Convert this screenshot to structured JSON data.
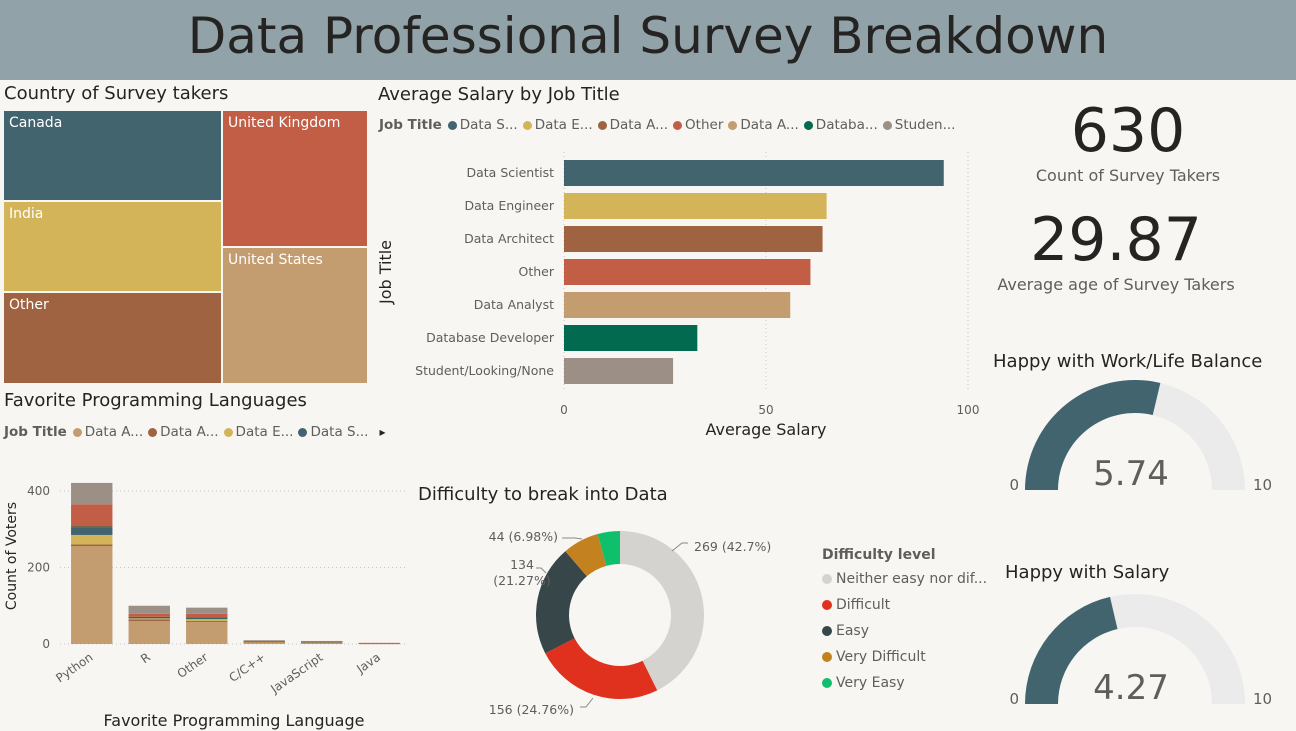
{
  "title": "Data Professional Survey Breakdown",
  "treemap": {
    "title": "Country of Survey takers",
    "items": [
      {
        "label": "Canada",
        "color": "#41646f"
      },
      {
        "label": "India",
        "color": "#d4b458"
      },
      {
        "label": "Other",
        "color": "#a06342"
      },
      {
        "label": "United Kingdom",
        "color": "#c25e45"
      },
      {
        "label": "United States",
        "color": "#c39c6f"
      }
    ]
  },
  "salary": {
    "title": "Average Salary by Job Title",
    "legend_title": "Job Title",
    "legend": [
      {
        "label": "Data S...",
        "color": "#41646f"
      },
      {
        "label": "Data E...",
        "color": "#d4b458"
      },
      {
        "label": "Data A...",
        "color": "#a06342"
      },
      {
        "label": "Other",
        "color": "#c25e45"
      },
      {
        "label": "Data A...",
        "color": "#c39c6f"
      },
      {
        "label": "Databa...",
        "color": "#026b4f"
      },
      {
        "label": "Studen...",
        "color": "#9c8f85"
      }
    ],
    "xlabel": "Average Salary",
    "ylabel": "Job Title"
  },
  "languages": {
    "title": "Favorite Programming Languages",
    "legend_title": "Job Title",
    "legend": [
      {
        "label": "Data A...",
        "color": "#c39c6f"
      },
      {
        "label": "Data A...",
        "color": "#a06342"
      },
      {
        "label": "Data E...",
        "color": "#d4b458"
      },
      {
        "label": "Data S...",
        "color": "#41646f"
      }
    ],
    "legend_arrow": "▸",
    "xlabel": "Favorite Programming Language",
    "ylabel": "Count of Voters"
  },
  "difficulty": {
    "title": "Difficulty to break into Data",
    "legend_title": "Difficulty level",
    "legend": [
      {
        "label": "Neither easy nor dif...",
        "color": "#d5d3cf"
      },
      {
        "label": "Difficult",
        "color": "#e0301e"
      },
      {
        "label": "Easy",
        "color": "#374649"
      },
      {
        "label": "Very Difficult",
        "color": "#c4811f"
      },
      {
        "label": "Very Easy",
        "color": "#0fbf6b"
      }
    ],
    "data_labels": [
      "269 (42.7%)",
      "156 (24.76%)",
      "134",
      "(21.27%)",
      "44 (6.98%)"
    ]
  },
  "kpis": [
    {
      "value": "630",
      "label": "Count of Survey Takers"
    },
    {
      "value": "29.87",
      "label": "Average age of Survey Takers"
    }
  ],
  "gauges": [
    {
      "title": "Happy with Work/Life Balance",
      "value": 5.74,
      "value_label": "5.74",
      "min_label": "0",
      "max_label": "10",
      "min": 0,
      "max": 10
    },
    {
      "title": "Happy with Salary",
      "value": 4.27,
      "value_label": "4.27",
      "min_label": "0",
      "max_label": "10",
      "min": 0,
      "max": 10
    }
  ],
  "chart_data": [
    {
      "type": "treemap",
      "title": "Country of Survey takers",
      "categories": [
        "Canada",
        "India",
        "Other",
        "United Kingdom",
        "United States"
      ],
      "values": [
        0.181,
        0.181,
        0.181,
        0.204,
        0.253
      ]
    },
    {
      "type": "bar",
      "orientation": "horizontal",
      "title": "Average Salary by Job Title",
      "categories": [
        "Data Scientist",
        "Data Engineer",
        "Data Architect",
        "Other",
        "Data Analyst",
        "Database Developer",
        "Student/Looking/None"
      ],
      "values": [
        94,
        65,
        64,
        61,
        56,
        33,
        27
      ],
      "colors": [
        "#41646f",
        "#d4b458",
        "#a06342",
        "#c25e45",
        "#c39c6f",
        "#026b4f",
        "#9c8f85"
      ],
      "xlabel": "Average Salary",
      "ylabel": "Job Title",
      "xlim": [
        0,
        100
      ],
      "xticks": [
        "0",
        "50",
        "100"
      ],
      "grid": true
    },
    {
      "type": "bar",
      "stacked": true,
      "title": "Favorite Programming Languages",
      "categories": [
        "Python",
        "R",
        "Other",
        "C/C++",
        "JavaScript",
        "Java"
      ],
      "series": [
        {
          "name": "Data A...",
          "color": "#c39c6f",
          "values": [
            256,
            60,
            57,
            4,
            3,
            1
          ]
        },
        {
          "name": "Data A...",
          "color": "#a06342",
          "values": [
            4,
            4,
            3,
            1,
            1,
            1
          ]
        },
        {
          "name": "Data E...",
          "color": "#d4b458",
          "values": [
            25,
            3,
            5,
            1,
            1,
            0
          ]
        },
        {
          "name": "Data S...",
          "color": "#41646f",
          "values": [
            20,
            3,
            3,
            1,
            1,
            0
          ]
        },
        {
          "color": "#026b4f",
          "values": [
            2,
            1,
            1,
            0,
            0,
            0
          ]
        },
        {
          "color": "#c25e45",
          "values": [
            58,
            8,
            10,
            1,
            1,
            1
          ]
        },
        {
          "color": "#9c8f85",
          "values": [
            56,
            21,
            16,
            2,
            1,
            0
          ]
        }
      ],
      "xlabel": "Favorite Programming Language",
      "ylabel": "Count of Voters",
      "ylim": [
        0,
        460
      ],
      "yticks": [
        "0",
        "200",
        "400"
      ],
      "grid": true
    },
    {
      "type": "pie",
      "donut": true,
      "title": "Difficulty to break into Data",
      "categories": [
        "Neither easy nor difficult",
        "Difficult",
        "Easy",
        "Very Difficult",
        "Very Easy"
      ],
      "values": [
        269,
        156,
        134,
        44,
        27
      ],
      "colors": [
        "#d5d3cf",
        "#e0301e",
        "#374649",
        "#c4811f",
        "#0fbf6b"
      ],
      "legend": "right"
    },
    {
      "type": "gauge",
      "title": "Happy with Work/Life Balance",
      "value": 5.74,
      "min": 0,
      "max": 10
    },
    {
      "type": "gauge",
      "title": "Happy with Salary",
      "value": 4.27,
      "min": 0,
      "max": 10
    }
  ]
}
